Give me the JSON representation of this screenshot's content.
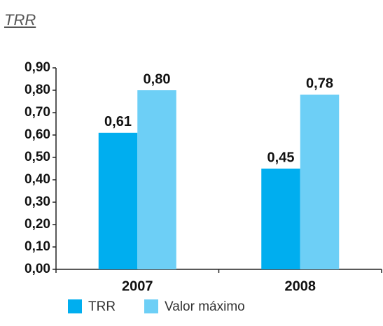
{
  "chart_data": {
    "type": "bar",
    "title": "TRR",
    "categories": [
      "2007",
      "2008"
    ],
    "series": [
      {
        "name": "TRR",
        "color": "#00aeef",
        "values": [
          0.61,
          0.45
        ],
        "value_labels": [
          "0,61",
          "0,45"
        ]
      },
      {
        "name": "Valor máximo",
        "color": "#6dcff6",
        "values": [
          0.8,
          0.78
        ],
        "value_labels": [
          "0,80",
          "0,78"
        ]
      }
    ],
    "ylim": [
      0,
      0.9
    ],
    "yticks": [
      {
        "value": 0,
        "label": "0,00"
      },
      {
        "value": 0.1,
        "label": "0,10"
      },
      {
        "value": 0.2,
        "label": "0,20"
      },
      {
        "value": 0.3,
        "label": "0,30"
      },
      {
        "value": 0.4,
        "label": "0,40"
      },
      {
        "value": 0.5,
        "label": "0,50"
      },
      {
        "value": 0.6,
        "label": "0,60"
      },
      {
        "value": 0.7,
        "label": "0,70"
      },
      {
        "value": 0.8,
        "label": "0,80"
      },
      {
        "value": 0.9,
        "label": "0,90"
      }
    ],
    "legend": "bottom"
  }
}
